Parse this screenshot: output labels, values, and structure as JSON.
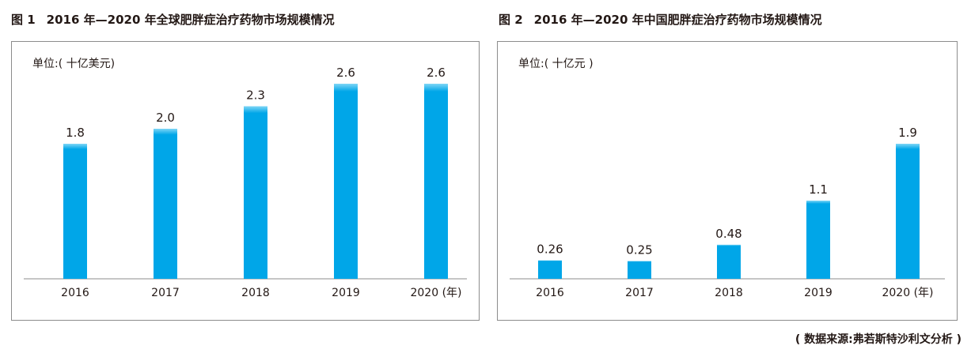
{
  "figures": [
    {
      "fig_label": "图 1",
      "title": "2016 年—2020 年全球肥胖症治疗药物市场规模情况",
      "unit": "单位:( 十亿美元)"
    },
    {
      "fig_label": "图 2",
      "title": "2016 年—2020 年中国肥胖症治疗药物市场规模情况",
      "unit": "单位:( 十亿元 )"
    }
  ],
  "source": "( 数据来源:弗若斯特沙利文分析 )",
  "colors": {
    "bar": "#00a6e8",
    "bar_top": "#7fd6f6",
    "axis": "#8c8c8c"
  },
  "chart_data": [
    {
      "type": "bar",
      "categories": [
        "2016",
        "2017",
        "2018",
        "2019",
        "2020 (年)"
      ],
      "values": [
        1.8,
        2.0,
        2.3,
        2.6,
        2.6
      ],
      "value_labels": [
        "1.8",
        "2.0",
        "2.3",
        "2.6",
        "2.6"
      ],
      "title": "2016 年—2020 年全球肥胖症治疗药物市场规模情况",
      "ylabel": "单位:( 十亿美元)",
      "ylim": [
        0,
        2.8
      ],
      "grid": false
    },
    {
      "type": "bar",
      "categories": [
        "2016",
        "2017",
        "2018",
        "2019",
        "2020 (年)"
      ],
      "values": [
        0.26,
        0.25,
        0.48,
        1.1,
        1.9
      ],
      "value_labels": [
        "0.26",
        "0.25",
        "0.48",
        "1.1",
        "1.9"
      ],
      "title": "2016 年—2020 年中国肥胖症治疗药物市场规模情况",
      "ylabel": "单位:( 十亿元 )",
      "ylim": [
        0,
        2.4
      ],
      "grid": false
    }
  ]
}
